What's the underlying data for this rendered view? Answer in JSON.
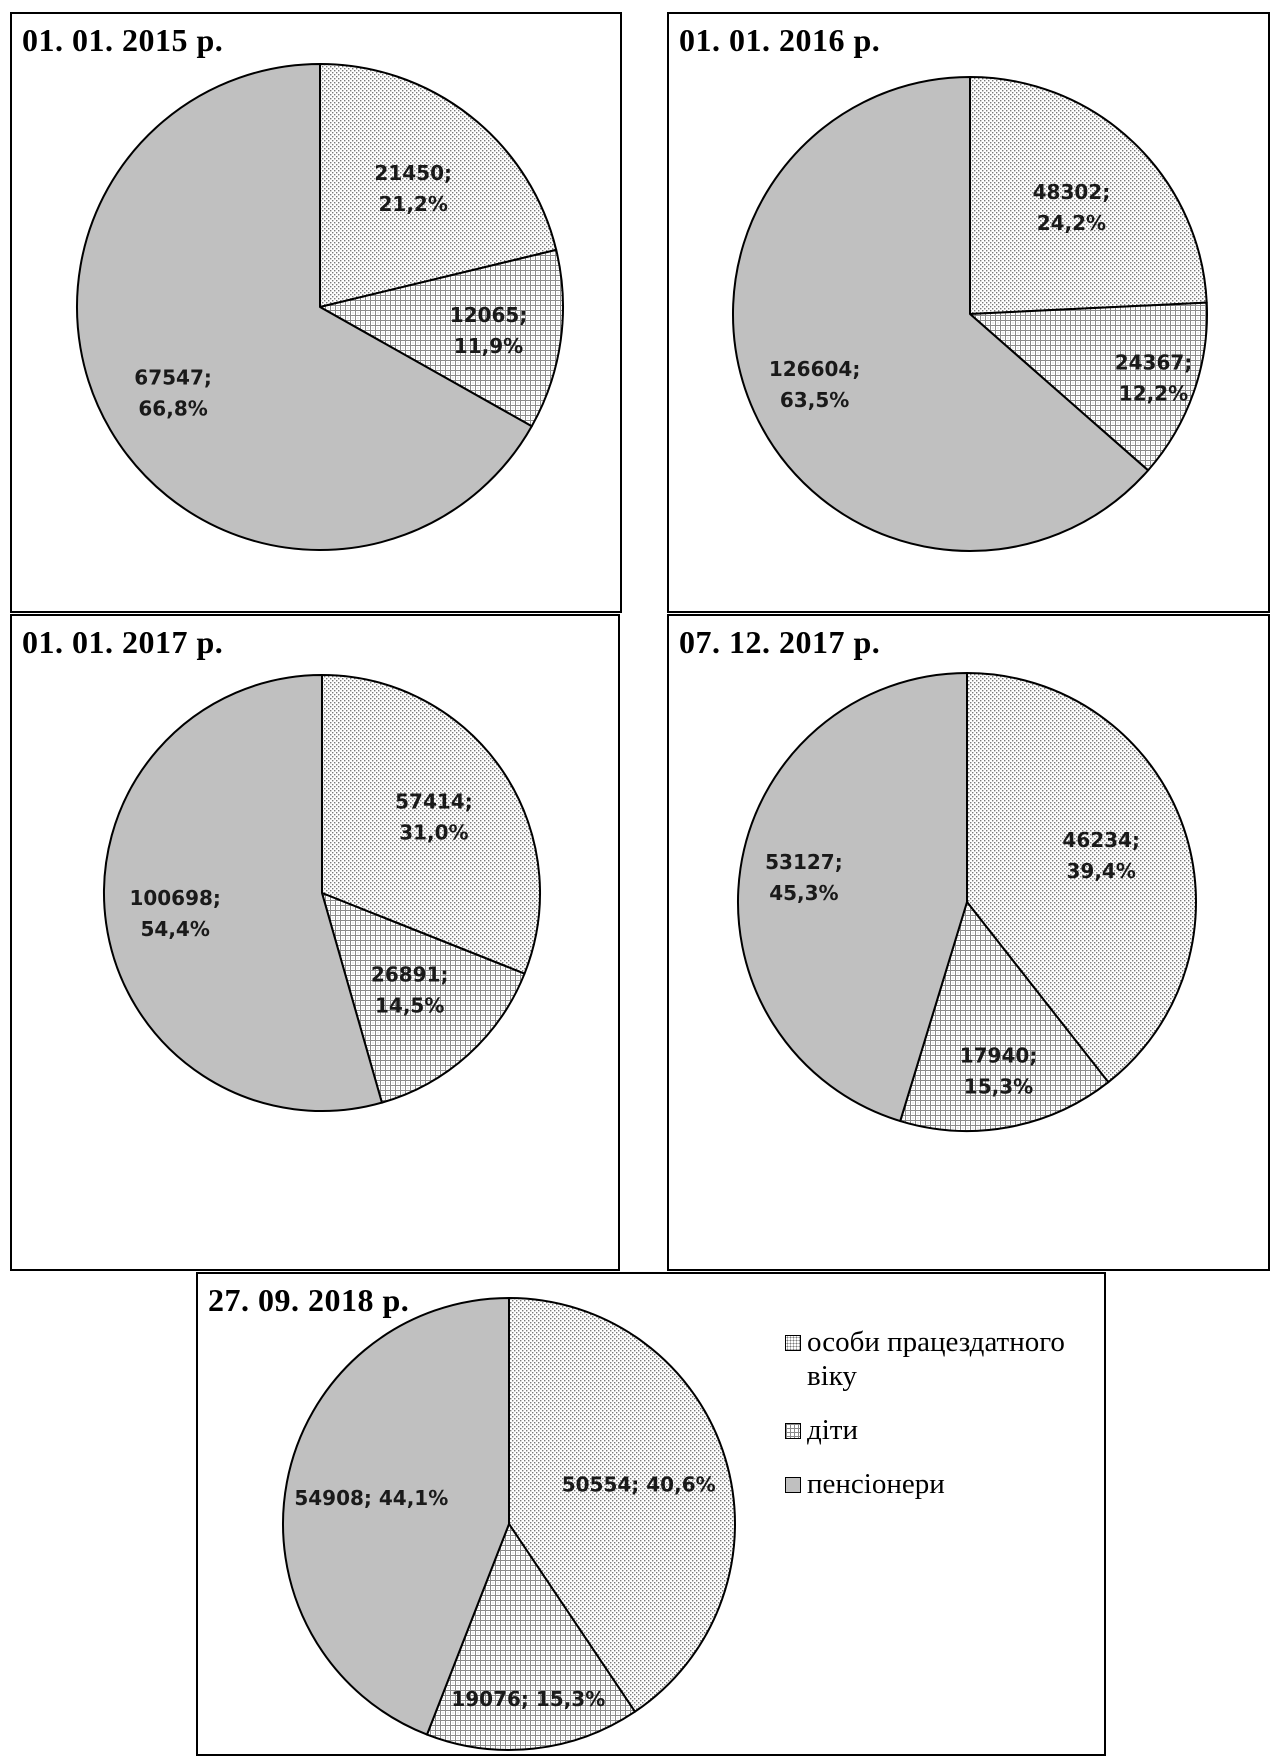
{
  "legend": {
    "items": [
      {
        "label": "особи працездатного віку",
        "pattern": "dots"
      },
      {
        "label": "діти",
        "pattern": "grid"
      },
      {
        "label": "пенсіонери",
        "pattern": "solid"
      }
    ]
  },
  "colors": {
    "pensioners_fill": "#c0c0c0",
    "working_dots": "#7a7a7a",
    "children_grid": "#8a8a8a",
    "outline": "#000000"
  },
  "chart_data": [
    {
      "type": "pie",
      "title": "01. 01. 2015 р.",
      "slices": [
        {
          "category": "особи працездатного віку",
          "value": 21450,
          "percent": 21.2,
          "label_lines": [
            "21450;",
            "21,2%"
          ]
        },
        {
          "category": "діти",
          "value": 12065,
          "percent": 11.9,
          "label_lines": [
            "12065;",
            "11,9%"
          ]
        },
        {
          "category": "пенсіонери",
          "value": 67547,
          "percent": 66.8,
          "label_lines": [
            "67547;",
            "66,8%"
          ]
        }
      ]
    },
    {
      "type": "pie",
      "title": "01. 01. 2016 р.",
      "slices": [
        {
          "category": "особи працездатного віку",
          "value": 48302,
          "percent": 24.2,
          "label_lines": [
            "48302;",
            "24,2%"
          ]
        },
        {
          "category": "діти",
          "value": 24367,
          "percent": 12.2,
          "label_lines": [
            "24367;",
            "12,2%"
          ]
        },
        {
          "category": "пенсіонери",
          "value": 126604,
          "percent": 63.5,
          "label_lines": [
            "126604;",
            "63,5%"
          ]
        }
      ]
    },
    {
      "type": "pie",
      "title": "01. 01. 2017 р.",
      "slices": [
        {
          "category": "особи працездатного віку",
          "value": 57414,
          "percent": 31.0,
          "label_lines": [
            "57414;",
            "31,0%"
          ]
        },
        {
          "category": "діти",
          "value": 26891,
          "percent": 14.5,
          "label_lines": [
            "26891;",
            "14,5%"
          ]
        },
        {
          "category": "пенсіонери",
          "value": 100698,
          "percent": 54.4,
          "label_lines": [
            "100698;",
            "54,4%"
          ]
        }
      ]
    },
    {
      "type": "pie",
      "title": "07. 12. 2017 р.",
      "slices": [
        {
          "category": "особи працездатного віку",
          "value": 46234,
          "percent": 39.4,
          "label_lines": [
            "46234;",
            "39,4%"
          ]
        },
        {
          "category": "діти",
          "value": 17940,
          "percent": 15.3,
          "label_lines": [
            "17940;",
            "15,3%"
          ]
        },
        {
          "category": "пенсіонери",
          "value": 53127,
          "percent": 45.3,
          "label_lines": [
            "53127;",
            "45,3%"
          ]
        }
      ]
    },
    {
      "type": "pie",
      "title": "27. 09. 2018 р.",
      "slices": [
        {
          "category": "особи працездатного віку",
          "value": 50554,
          "percent": 40.6,
          "label_lines": [
            "50554; 40,6%"
          ]
        },
        {
          "category": "діти",
          "value": 19076,
          "percent": 15.3,
          "label_lines": [
            "19076; 15,3%"
          ]
        },
        {
          "category": "пенсіонери",
          "value": 54908,
          "percent": 44.1,
          "label_lines": [
            "54908; 44,1%"
          ]
        }
      ]
    }
  ]
}
